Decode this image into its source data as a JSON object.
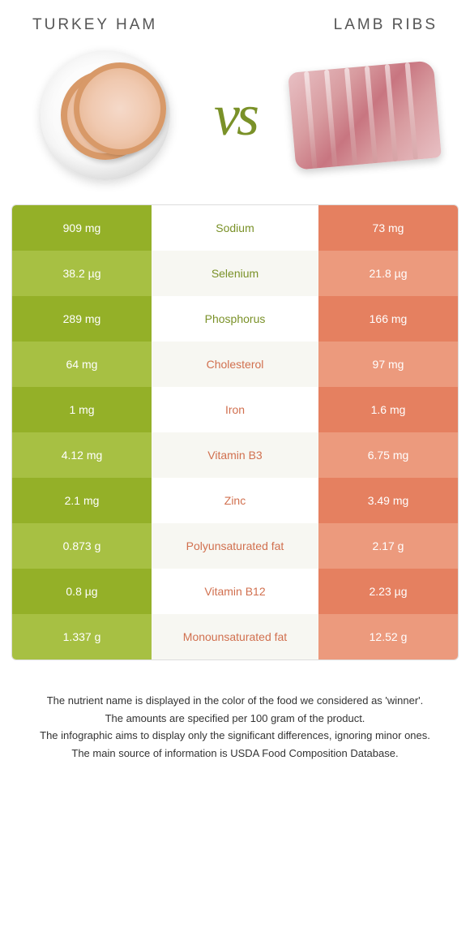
{
  "colors": {
    "green_strong": "#94b028",
    "green_light": "#a7c043",
    "orange_strong": "#e58060",
    "orange_light": "#ec9a7d",
    "green_text": "#7a9128",
    "orange_text": "#d1704f"
  },
  "header": {
    "left_title": "Turkey ham",
    "right_title": "Lamb ribs",
    "vs": "vs"
  },
  "rows": [
    {
      "label": "Sodium",
      "left": "909 mg",
      "right": "73 mg",
      "winner": "left"
    },
    {
      "label": "Selenium",
      "left": "38.2 µg",
      "right": "21.8 µg",
      "winner": "left"
    },
    {
      "label": "Phosphorus",
      "left": "289 mg",
      "right": "166 mg",
      "winner": "left"
    },
    {
      "label": "Cholesterol",
      "left": "64 mg",
      "right": "97 mg",
      "winner": "right"
    },
    {
      "label": "Iron",
      "left": "1 mg",
      "right": "1.6 mg",
      "winner": "right"
    },
    {
      "label": "Vitamin B3",
      "left": "4.12 mg",
      "right": "6.75 mg",
      "winner": "right"
    },
    {
      "label": "Zinc",
      "left": "2.1 mg",
      "right": "3.49 mg",
      "winner": "right"
    },
    {
      "label": "Polyunsaturated fat",
      "left": "0.873 g",
      "right": "2.17 g",
      "winner": "right"
    },
    {
      "label": "Vitamin B12",
      "left": "0.8 µg",
      "right": "2.23 µg",
      "winner": "right"
    },
    {
      "label": "Monounsaturated fat",
      "left": "1.337 g",
      "right": "12.52 g",
      "winner": "right"
    }
  ],
  "footnotes": [
    "The nutrient name is displayed in the color of the food we considered as 'winner'.",
    "The amounts are specified per 100 gram of the product.",
    "The infographic aims to display only the significant differences, ignoring minor ones.",
    "The main source of information is USDA Food Composition Database."
  ]
}
